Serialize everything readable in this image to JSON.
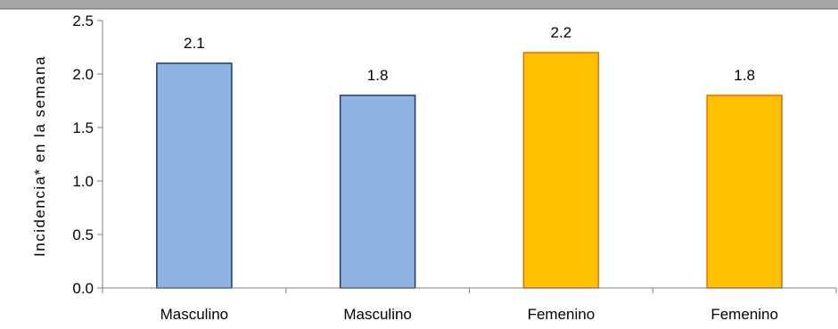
{
  "chart_data": {
    "type": "bar",
    "categories": [
      "Masculino",
      "Masculino",
      "Femenino",
      "Femenino"
    ],
    "values": [
      2.1,
      1.8,
      2.2,
      1.8
    ],
    "data_labels": [
      "2.1",
      "1.8",
      "2.2",
      "1.8"
    ],
    "bar_colors": [
      "#8EB4E3",
      "#8EB4E3",
      "#FFC000",
      "#FFC000"
    ],
    "bar_edge_colors": [
      "#1F3A60",
      "#1F3A60",
      "#E46C0A",
      "#E46C0A"
    ],
    "ylabel": "Incidencia* en la semana",
    "ylim": [
      0,
      2.5
    ],
    "yticks": [
      "0.0",
      "0.5",
      "1.0",
      "1.5",
      "2.0",
      "2.5"
    ],
    "grid": false,
    "header_color": "#A6A6A6"
  }
}
